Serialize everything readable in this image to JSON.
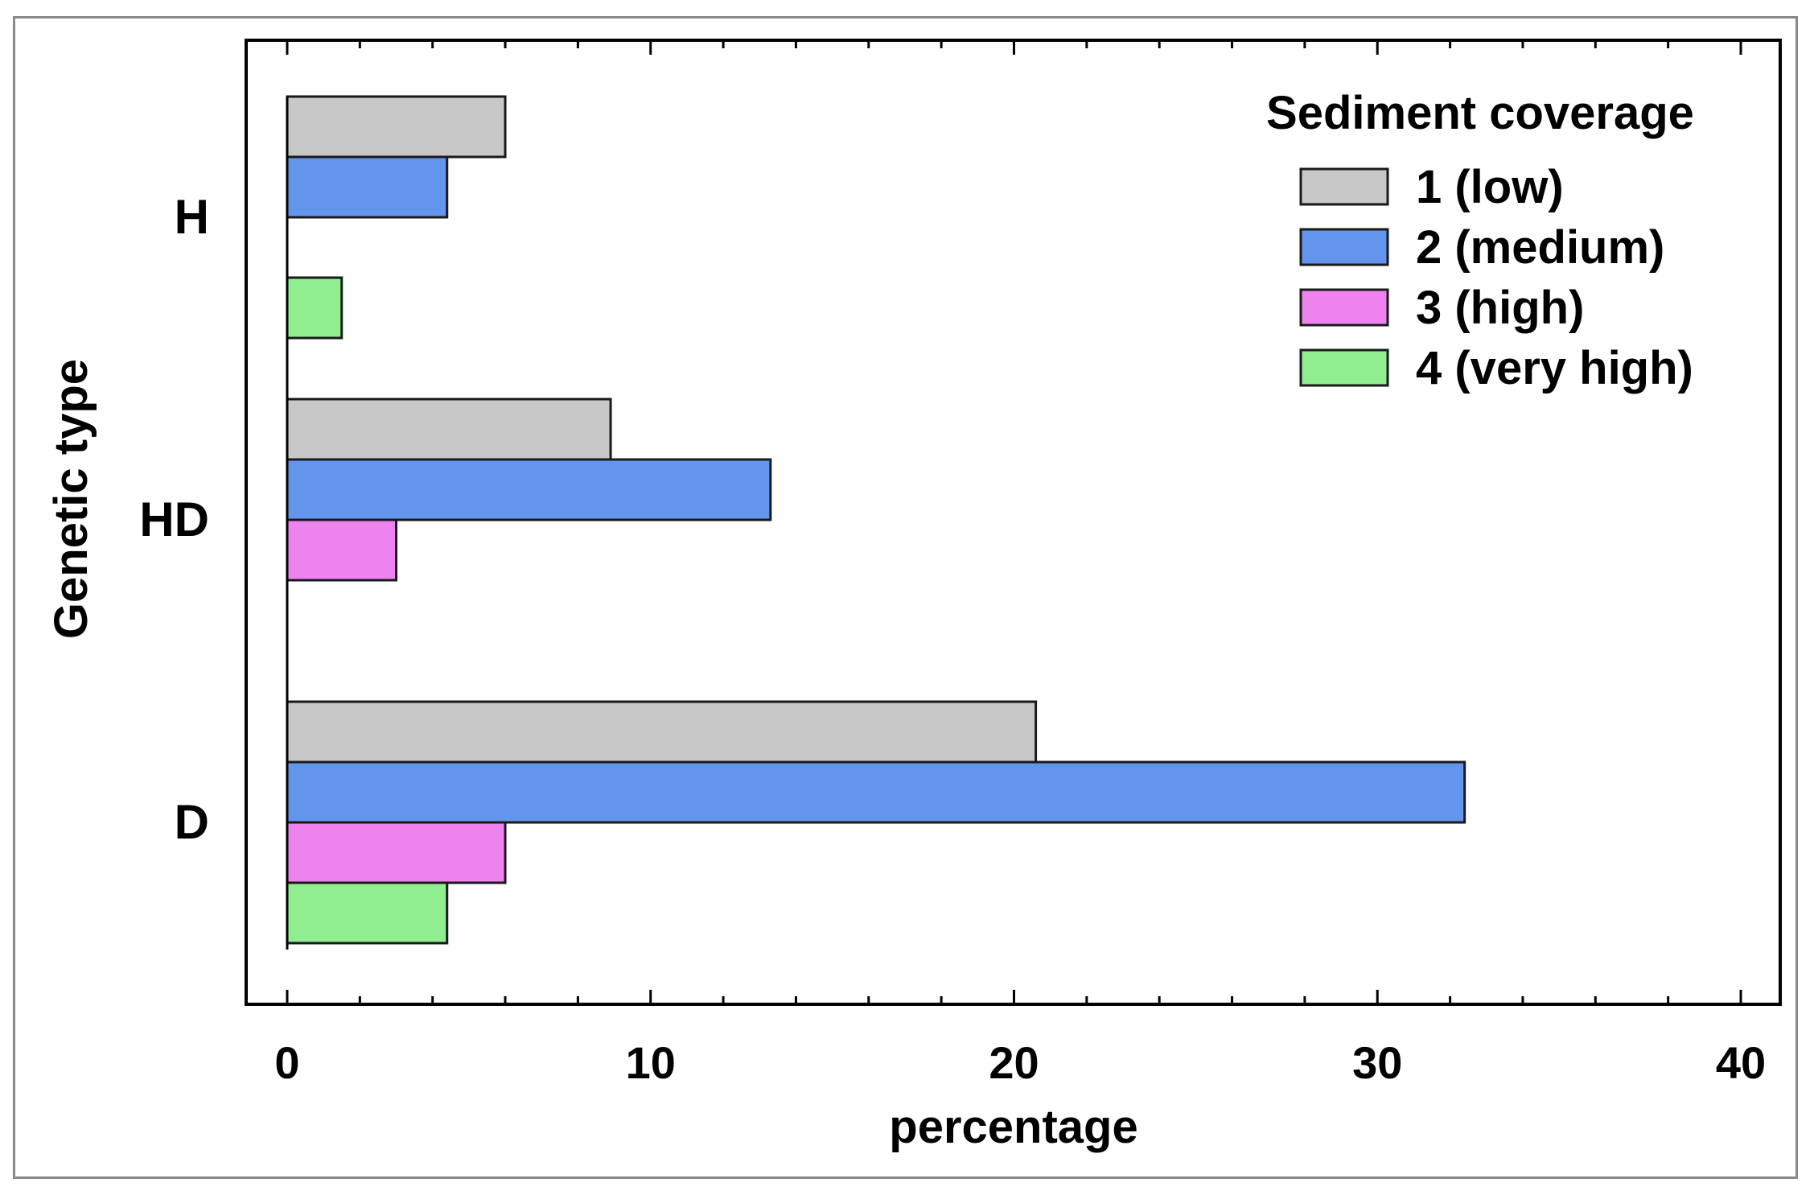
{
  "chart_data": {
    "type": "bar",
    "orientation": "horizontal",
    "categories": [
      "H",
      "HD",
      "D"
    ],
    "series": [
      {
        "name": "1 (low)",
        "color": "#c8c8c8",
        "values": [
          6.0,
          8.9,
          20.6
        ]
      },
      {
        "name": "2 (medium)",
        "color": "#6495ed",
        "values": [
          4.4,
          13.3,
          32.4
        ]
      },
      {
        "name": "3 (high)",
        "color": "#ee82ee",
        "values": [
          0,
          3.0,
          6.0
        ]
      },
      {
        "name": "4 (very high)",
        "color": "#90ee90",
        "values": [
          1.5,
          0,
          4.4
        ]
      }
    ],
    "title": "",
    "xlabel": "percentage",
    "ylabel": "Genetic type",
    "xlim": [
      0,
      40
    ],
    "xticks": [
      0,
      10,
      20,
      30,
      40
    ],
    "xtick_labels": [
      "0",
      "10",
      "20",
      "30",
      "40"
    ],
    "minor_tick_step": 2,
    "legend_title": "Sediment coverage",
    "legend_position": "top-right",
    "grid": false
  }
}
